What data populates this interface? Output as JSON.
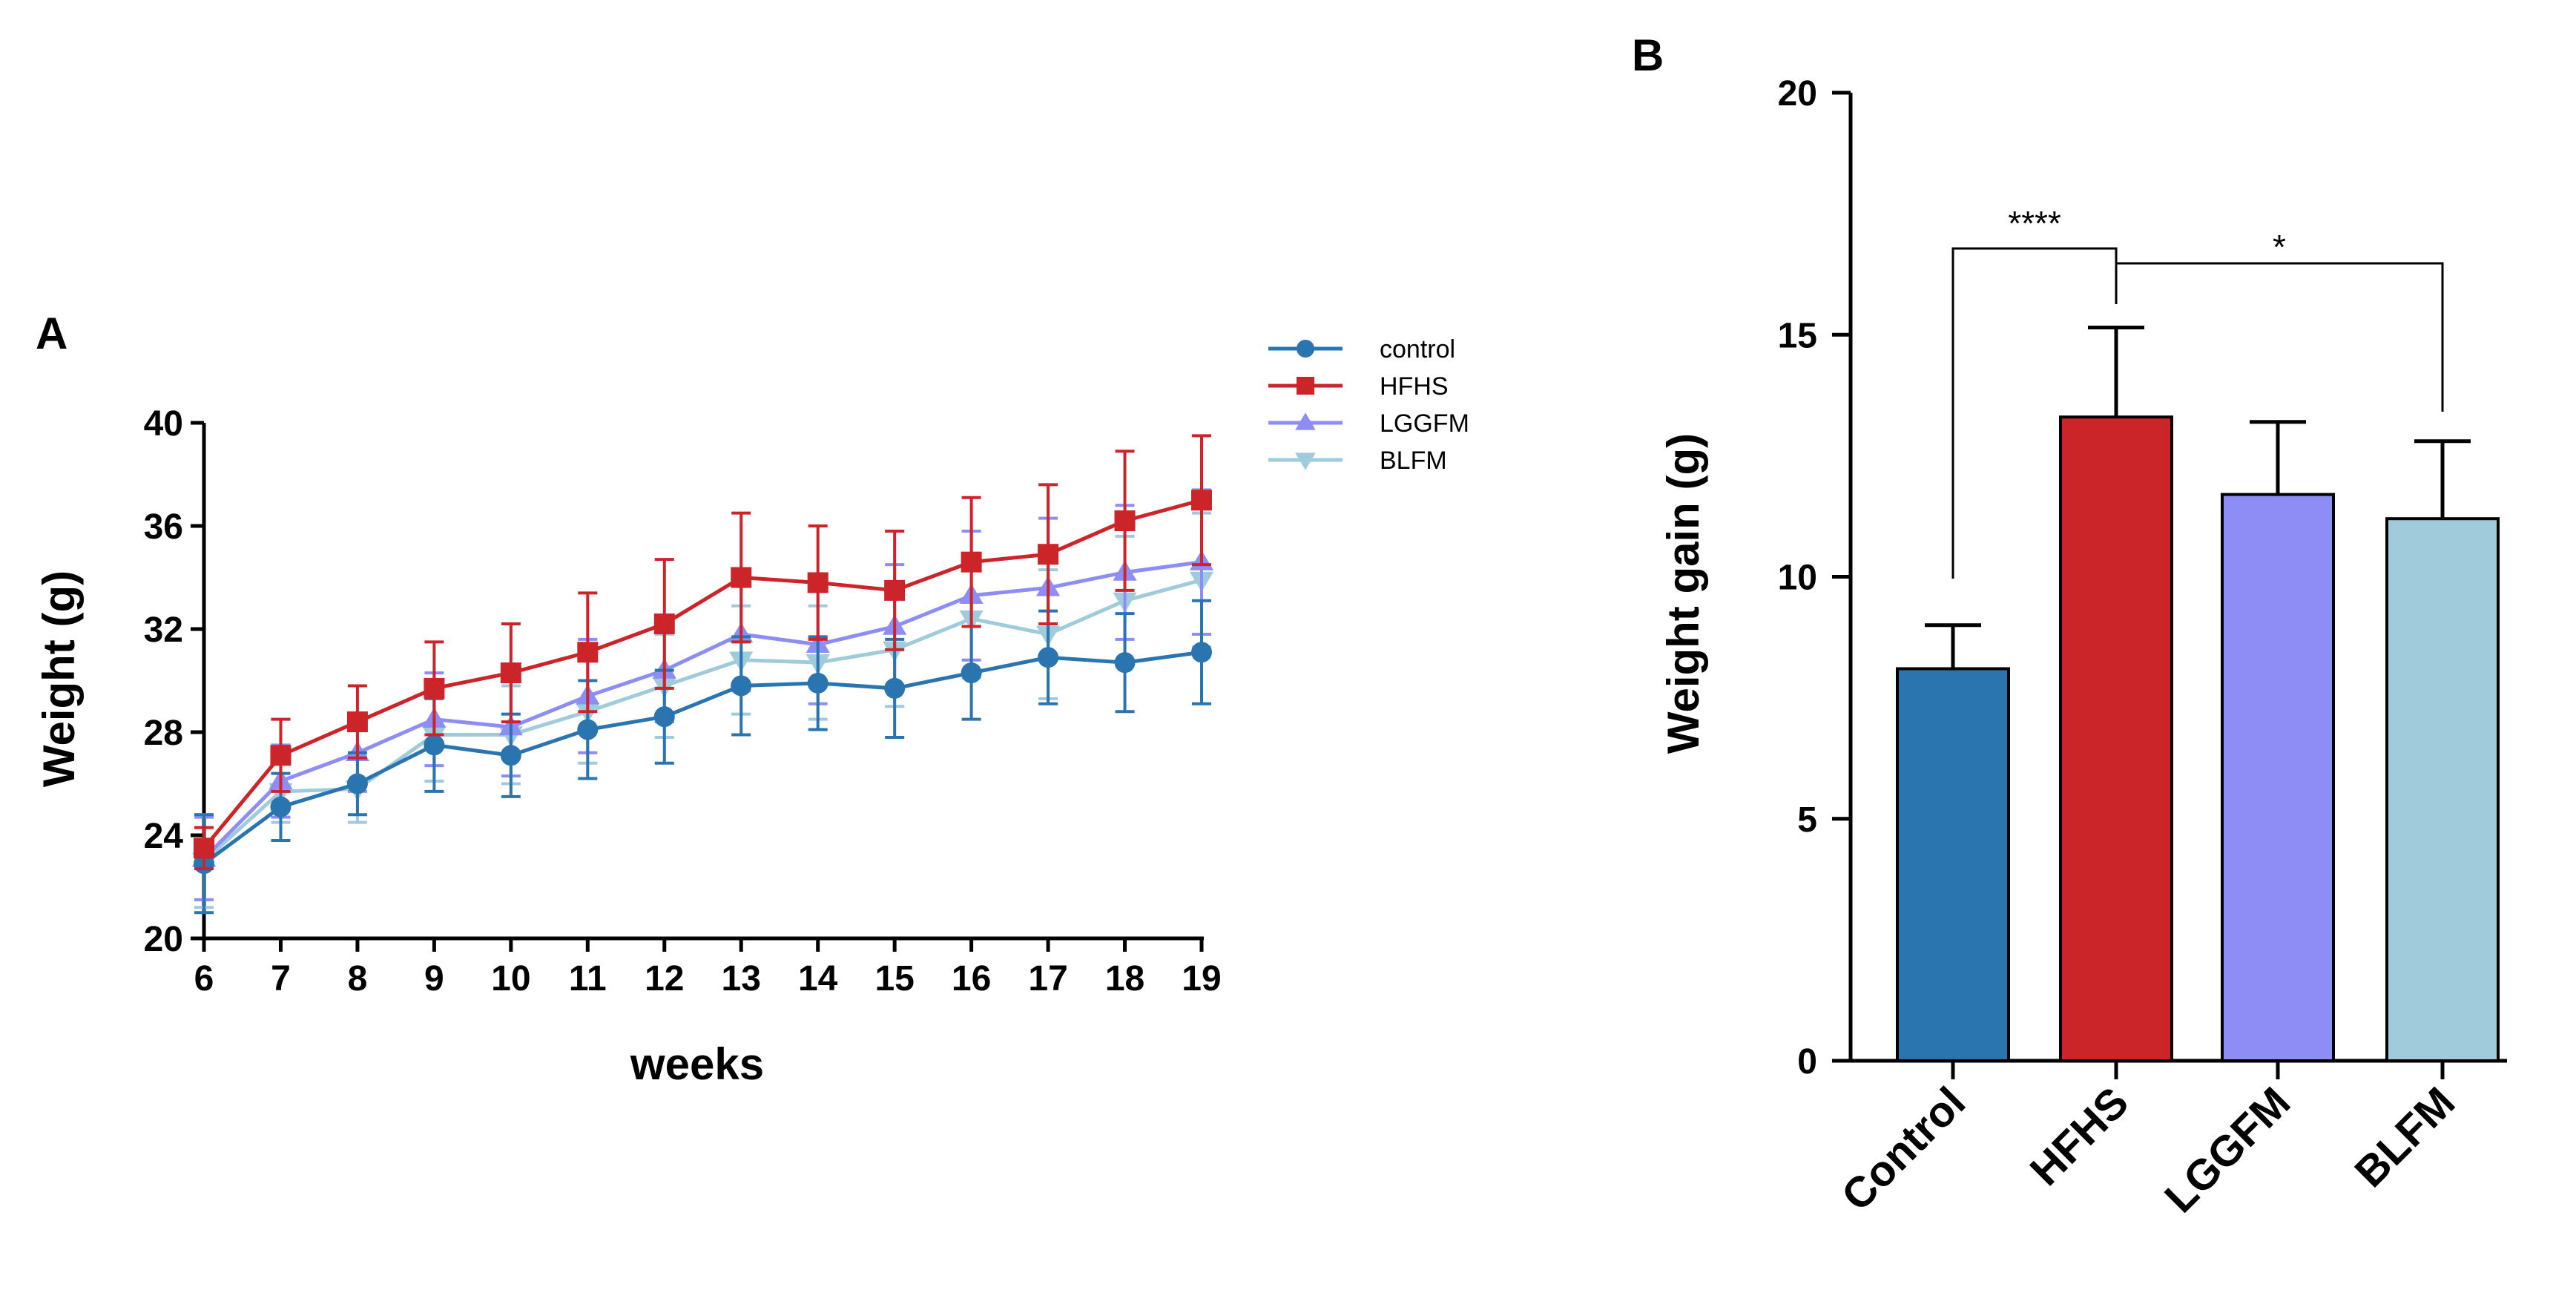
{
  "panels": {
    "a": {
      "label": "A"
    },
    "b": {
      "label": "B"
    }
  },
  "chart_data": [
    {
      "type": "line",
      "panel": "A",
      "xlabel": "weeks",
      "ylabel": "Weight (g)",
      "x": [
        6,
        7,
        8,
        9,
        10,
        11,
        12,
        13,
        14,
        15,
        16,
        17,
        18,
        19
      ],
      "xlim": [
        6,
        19
      ],
      "ylim": [
        20,
        40
      ],
      "yticks": [
        20,
        24,
        28,
        32,
        36,
        40
      ],
      "legend_position": "top-right",
      "series": [
        {
          "name": "control",
          "color": "#2a74b0",
          "marker": "circle",
          "values": [
            22.9,
            25.1,
            26.0,
            27.5,
            27.1,
            28.1,
            28.6,
            29.8,
            29.9,
            29.7,
            30.3,
            30.9,
            30.7,
            31.1
          ],
          "errors": [
            1.9,
            1.3,
            1.2,
            1.8,
            1.6,
            1.9,
            1.8,
            1.9,
            1.8,
            1.9,
            1.8,
            1.8,
            1.9,
            2.0
          ]
        },
        {
          "name": "HFHS",
          "color": "#cc2529",
          "marker": "square",
          "values": [
            23.5,
            27.1,
            28.4,
            29.7,
            30.3,
            31.1,
            32.2,
            34.0,
            33.8,
            33.5,
            34.6,
            34.9,
            36.2,
            37.0
          ],
          "errors": [
            0.8,
            1.4,
            1.4,
            1.8,
            1.9,
            2.3,
            2.5,
            2.5,
            2.2,
            2.3,
            2.5,
            2.7,
            2.7,
            2.5
          ]
        },
        {
          "name": "LGGFM",
          "color": "#8d8df5",
          "marker": "triangle-up",
          "values": [
            23.1,
            26.1,
            27.2,
            28.5,
            28.2,
            29.4,
            30.4,
            31.8,
            31.4,
            32.1,
            33.3,
            33.6,
            34.2,
            34.6
          ],
          "errors": [
            1.6,
            1.4,
            1.5,
            1.8,
            1.9,
            2.2,
            2.0,
            2.2,
            2.3,
            2.4,
            2.5,
            2.7,
            2.6,
            2.8
          ]
        },
        {
          "name": "BLFM",
          "color": "#9fcbdb",
          "marker": "triangle-down",
          "values": [
            23.0,
            25.7,
            25.8,
            27.9,
            27.9,
            28.8,
            29.8,
            30.8,
            30.7,
            31.2,
            32.4,
            31.8,
            33.1,
            33.9
          ],
          "errors": [
            1.8,
            1.2,
            1.3,
            1.8,
            1.9,
            2.0,
            2.0,
            2.1,
            2.2,
            2.2,
            2.3,
            2.5,
            2.5,
            2.6
          ]
        }
      ]
    },
    {
      "type": "bar",
      "panel": "B",
      "categories": [
        "Control",
        "HFHS",
        "LGGFM",
        "BLFM"
      ],
      "values": [
        8.1,
        13.3,
        11.7,
        11.2
      ],
      "errors": [
        0.9,
        1.85,
        1.5,
        1.6
      ],
      "colors": [
        "#2a74b0",
        "#cc2529",
        "#8d8df5",
        "#9fcbdb"
      ],
      "xlabel": "",
      "ylabel": "Weight gain (g)",
      "ylim": [
        0,
        20
      ],
      "yticks": [
        0,
        5,
        10,
        15,
        20
      ],
      "significance": [
        {
          "from": "Control",
          "to": "HFHS",
          "label": "****"
        },
        {
          "from": "HFHS",
          "to": "BLFM",
          "label": "*"
        }
      ]
    }
  ]
}
